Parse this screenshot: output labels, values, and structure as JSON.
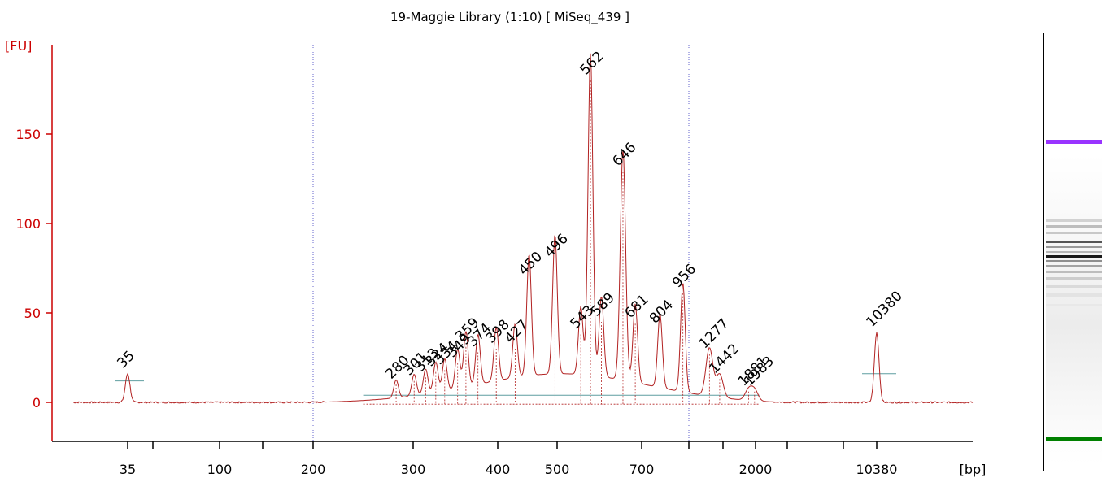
{
  "chart_data": {
    "type": "line",
    "title": "19-Maggie Library (1:10)  [ MiSeq_439 ]",
    "ylabel": "[FU]",
    "xlabel": "[bp]",
    "ylim": [
      -22,
      190
    ],
    "yticks": [
      0,
      50,
      100,
      150
    ],
    "x_scale": "nonlinear (ladder-calibrated)",
    "xticks": [
      35,
      100,
      200,
      300,
      400,
      500,
      700,
      2000,
      10380
    ],
    "x_minor_ticks": [
      50,
      150,
      1000,
      1500,
      3000,
      7000
    ],
    "marker_lines_bp": [
      200,
      1000
    ],
    "ladder_markers": [
      {
        "label": "35",
        "bp": 35,
        "fu": 16,
        "color": "#008000"
      },
      {
        "label": "10380",
        "bp": 10380,
        "fu": 39,
        "color": "#9933ff"
      }
    ],
    "peaks": [
      {
        "label": "280",
        "bp": 280,
        "fu": 10
      },
      {
        "label": "301",
        "bp": 301,
        "fu": 12
      },
      {
        "label": "313",
        "bp": 313,
        "fu": 14
      },
      {
        "label": "324",
        "bp": 324,
        "fu": 17
      },
      {
        "label": "334",
        "bp": 334,
        "fu": 18
      },
      {
        "label": "349",
        "bp": 349,
        "fu": 22
      },
      {
        "label": "359",
        "bp": 359,
        "fu": 31
      },
      {
        "label": "374",
        "bp": 374,
        "fu": 28
      },
      {
        "label": "398",
        "bp": 398,
        "fu": 30
      },
      {
        "label": "427",
        "bp": 427,
        "fu": 30
      },
      {
        "label": "450",
        "bp": 450,
        "fu": 68
      },
      {
        "label": "496",
        "bp": 496,
        "fu": 78
      },
      {
        "label": "543",
        "bp": 543,
        "fu": 38
      },
      {
        "label": "562",
        "bp": 562,
        "fu": 180
      },
      {
        "label": "589",
        "bp": 589,
        "fu": 45
      },
      {
        "label": "646",
        "bp": 646,
        "fu": 129
      },
      {
        "label": "681",
        "bp": 681,
        "fu": 44
      },
      {
        "label": "804",
        "bp": 804,
        "fu": 41
      },
      {
        "label": "956",
        "bp": 956,
        "fu": 61
      },
      {
        "label": "1277",
        "bp": 1277,
        "fu": 27
      },
      {
        "label": "1442",
        "bp": 1442,
        "fu": 13
      },
      {
        "label": "1881",
        "bp": 1881,
        "fu": 6
      },
      {
        "label": "1983",
        "bp": 1983,
        "fu": 6
      }
    ]
  },
  "colors": {
    "trace": "#b22222",
    "axis": "#cc0000",
    "marker_line": "#6666cc",
    "baseline": "#5f9ea0",
    "lower_marker": "#008000",
    "upper_marker": "#9933ff"
  },
  "gel": {
    "upper_marker_color": "#9933ff",
    "lower_marker_color": "#008000"
  }
}
